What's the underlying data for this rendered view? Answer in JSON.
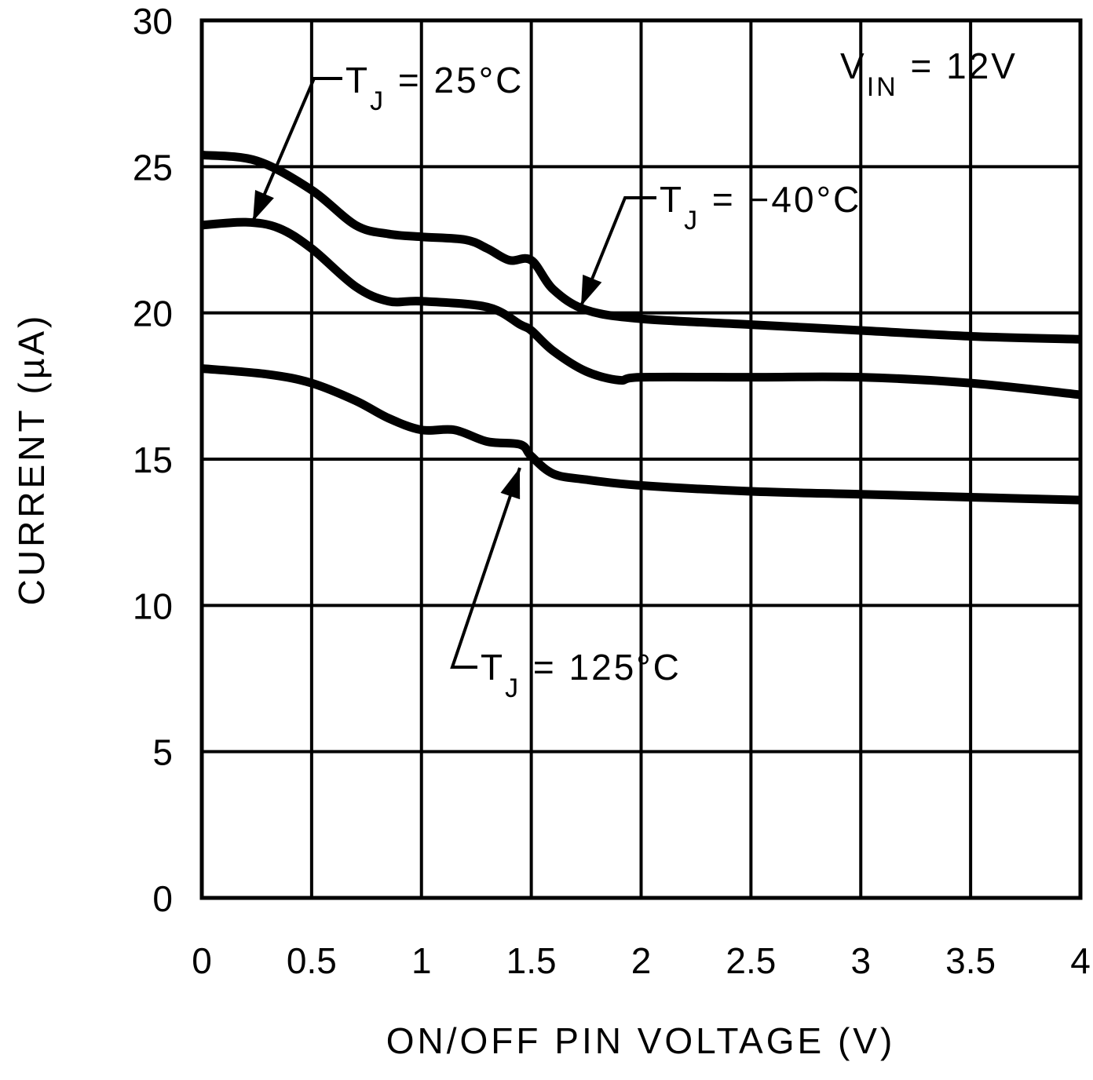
{
  "chart_data": {
    "type": "line",
    "title": "",
    "xlabel": "ON/OFF PIN VOLTAGE (V)",
    "ylabel": "CURRENT (µA)",
    "xlim": [
      0,
      4
    ],
    "ylim": [
      0,
      30
    ],
    "x_ticks": [
      "0",
      "0.5",
      "1",
      "1.5",
      "2",
      "2.5",
      "3",
      "3.5",
      "4"
    ],
    "y_ticks": [
      "0",
      "5",
      "10",
      "15",
      "20",
      "25",
      "30"
    ],
    "grid": true,
    "condition": "VIN = 12V",
    "series": [
      {
        "name": "TJ = -40°C",
        "x": [
          0,
          0.25,
          0.5,
          0.7,
          0.85,
          1.0,
          1.2,
          1.3,
          1.4,
          1.5,
          1.6,
          1.75,
          2.0,
          2.5,
          3.0,
          3.5,
          4.0
        ],
        "values": [
          25.4,
          25.2,
          24.2,
          23.0,
          22.7,
          22.6,
          22.5,
          22.2,
          21.8,
          21.8,
          20.8,
          20.1,
          19.8,
          19.6,
          19.4,
          19.2,
          19.1
        ]
      },
      {
        "name": "TJ = 25°C",
        "x": [
          0,
          0.2,
          0.35,
          0.5,
          0.7,
          0.85,
          1.0,
          1.3,
          1.45,
          1.5,
          1.6,
          1.75,
          1.9,
          2.0,
          2.5,
          3.0,
          3.5,
          4.0
        ],
        "values": [
          23.0,
          23.1,
          22.9,
          22.2,
          20.9,
          20.4,
          20.4,
          20.2,
          19.6,
          19.4,
          18.7,
          18.0,
          17.7,
          17.8,
          17.8,
          17.8,
          17.6,
          17.2
        ]
      },
      {
        "name": "TJ = 125°C",
        "x": [
          0,
          0.3,
          0.5,
          0.7,
          0.85,
          1.0,
          1.15,
          1.3,
          1.45,
          1.5,
          1.6,
          1.75,
          2.0,
          2.5,
          3.0,
          3.5,
          4.0
        ],
        "values": [
          18.1,
          17.9,
          17.6,
          17.0,
          16.4,
          16.0,
          16.0,
          15.6,
          15.5,
          15.1,
          14.5,
          14.3,
          14.1,
          13.9,
          13.8,
          13.7,
          13.6
        ]
      }
    ],
    "annotations": [
      {
        "text": "TJ = 25°C",
        "points_to": {
          "x": 0.22,
          "y": 23.1
        }
      },
      {
        "text": "TJ = -40°C",
        "points_to": {
          "x": 1.73,
          "y": 20.1
        }
      },
      {
        "text": "TJ = 125°C",
        "points_to": {
          "x": 1.47,
          "y": 15.2
        }
      }
    ]
  },
  "labels": {
    "xlabel": "ON/OFF PIN VOLTAGE (V)",
    "ylabel": "CURRENT (µA)",
    "vin_main": "V",
    "vin_sub": "IN",
    "vin_value": " = 12V",
    "t_main": "T",
    "t_sub": "J",
    "ann_25": " = 25°C",
    "ann_m40": " = −40°C",
    "ann_125": " = 125°C"
  }
}
